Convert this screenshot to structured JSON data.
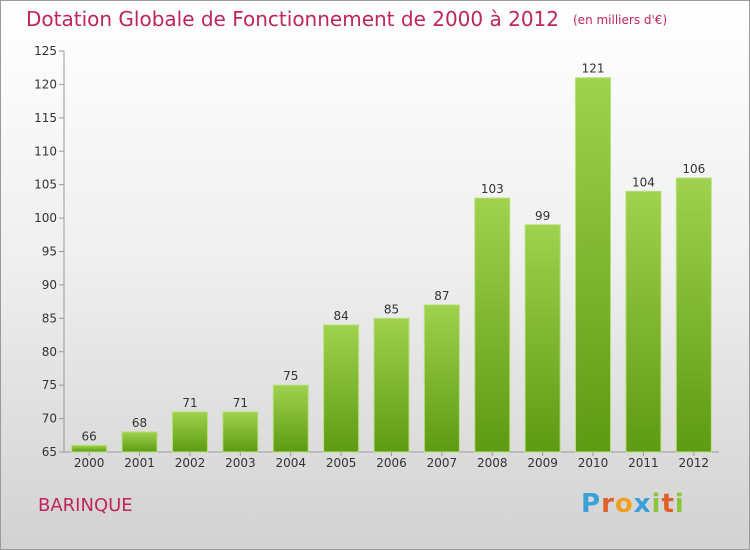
{
  "header": {
    "title": "Dotation Globale de Fonctionnement de 2000 à 2012",
    "unit": "(en milliers d'€)"
  },
  "footer": {
    "place": "BARINQUE",
    "logo_text": "Proxiti"
  },
  "colors": {
    "title": "#c0245e",
    "bar_top": "#9fd24e",
    "bar_bottom": "#5e9a14",
    "logo_letters": [
      "#3aa0d8",
      "#e0602c",
      "#f0a020",
      "#3aa0d8",
      "#8cc63f",
      "#e0602c",
      "#8cc63f"
    ]
  },
  "chart_data": {
    "type": "bar",
    "categories": [
      "2000",
      "2001",
      "2002",
      "2003",
      "2004",
      "2005",
      "2006",
      "2007",
      "2008",
      "2009",
      "2010",
      "2011",
      "2012"
    ],
    "values": [
      66,
      68,
      71,
      71,
      75,
      84,
      85,
      87,
      103,
      99,
      121,
      104,
      106
    ],
    "ylim": [
      65,
      125
    ],
    "yticks": [
      65,
      70,
      75,
      80,
      85,
      90,
      95,
      100,
      105,
      110,
      115,
      120,
      125
    ],
    "grid": false,
    "data_labels": true
  }
}
